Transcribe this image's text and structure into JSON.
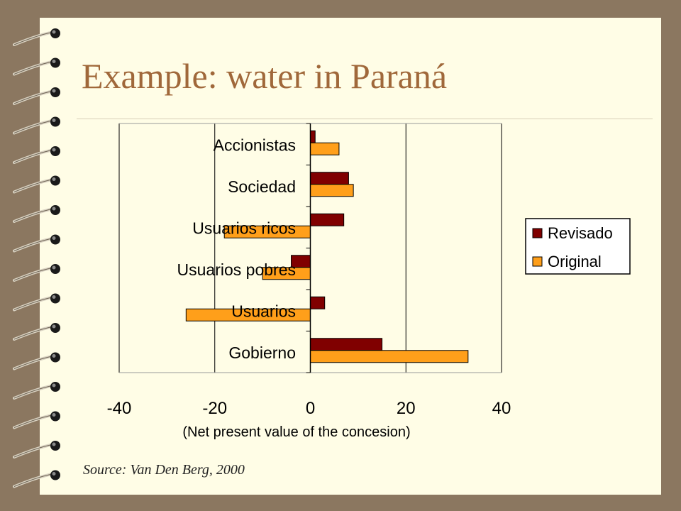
{
  "slide": {
    "title": "Example: water in Paraná",
    "source": "Source: Van Den Berg, 2000"
  },
  "colors": {
    "background": "#8b7760",
    "slide": "#fffde6",
    "title": "#a0683a",
    "revisado": "#800000",
    "original": "#ff9f1a"
  },
  "chart_data": {
    "type": "bar",
    "orientation": "horizontal",
    "categories": [
      "Accionistas",
      "Sociedad",
      "Usuarios ricos",
      "Usuarios pobres",
      "Usuarios",
      "Gobierno"
    ],
    "series": [
      {
        "name": "Revisado",
        "color": "#800000",
        "values": [
          1,
          8,
          7,
          -4,
          3,
          15
        ]
      },
      {
        "name": "Original",
        "color": "#ff9f1a",
        "values": [
          6,
          9,
          -18,
          -10,
          -26,
          33
        ]
      }
    ],
    "xlim": [
      -40,
      40
    ],
    "xticks": [
      -40,
      -20,
      0,
      20,
      40
    ],
    "xlabel": "(Net present value of the concesion)",
    "ylabel": "",
    "grid": "vertical",
    "legend_position": "right"
  }
}
